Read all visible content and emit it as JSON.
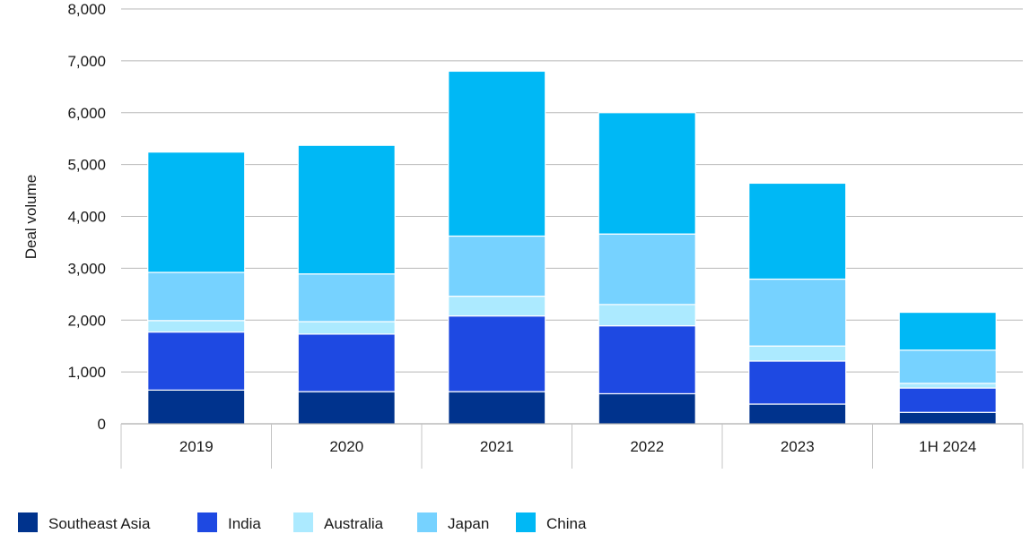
{
  "chart_data": {
    "type": "bar",
    "stacked": true,
    "title": "",
    "xlabel": "",
    "ylabel": "Deal volume",
    "ylim": [
      0,
      8000
    ],
    "yticks": [
      "0",
      "1,000",
      "2,000",
      "3,000",
      "4,000",
      "5,000",
      "6,000",
      "7,000",
      "8,000"
    ],
    "categories": [
      "2019",
      "2020",
      "2021",
      "2022",
      "2023",
      "1H 2024"
    ],
    "grid": true,
    "legend_position": "bottom",
    "series": [
      {
        "name": "Southeast Asia",
        "color": "#00338D",
        "values": [
          650,
          620,
          620,
          580,
          380,
          220
        ]
      },
      {
        "name": "India",
        "color": "#1E49E2",
        "values": [
          1120,
          1110,
          1460,
          1310,
          830,
          470
        ]
      },
      {
        "name": "Australia",
        "color": "#ACEAFF",
        "values": [
          220,
          240,
          380,
          410,
          290,
          90
        ]
      },
      {
        "name": "Japan",
        "color": "#76D2FF",
        "values": [
          930,
          920,
          1160,
          1360,
          1290,
          640
        ]
      },
      {
        "name": "China",
        "color": "#00B8F5",
        "values": [
          2320,
          2480,
          3180,
          2340,
          1850,
          730
        ]
      }
    ]
  }
}
